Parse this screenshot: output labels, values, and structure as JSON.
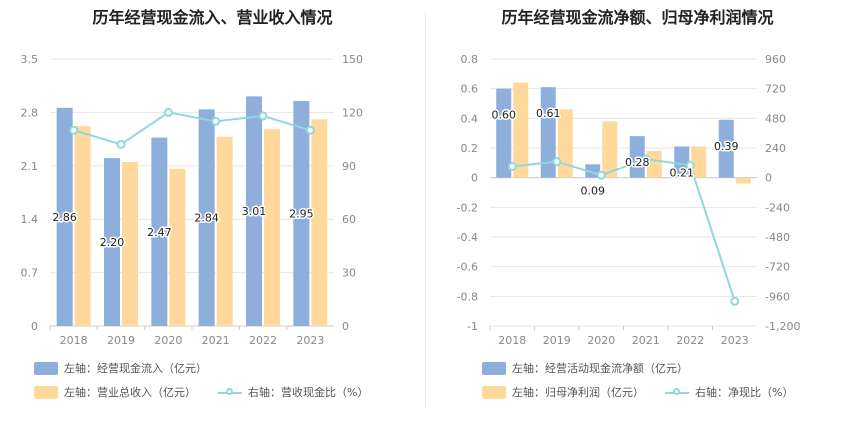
{
  "colors": {
    "blue": "#8eaedc",
    "orange": "#ffd99b",
    "line": "#8fd8dc",
    "grid": "#e6e6e6",
    "axis": "#cccccc"
  },
  "chart_data": [
    {
      "type": "bar",
      "title": "历年经营现金流入、营业收入情况",
      "categories": [
        "2018",
        "2019",
        "2020",
        "2021",
        "2022",
        "2023"
      ],
      "y_left": {
        "range": [
          0,
          3.5
        ],
        "ticks": [
          "0",
          "0.7",
          "1.4",
          "2.1",
          "2.8",
          "3.5"
        ]
      },
      "y_right": {
        "range": [
          0,
          150
        ],
        "ticks": [
          "0",
          "30",
          "60",
          "90",
          "120",
          "150"
        ]
      },
      "series": [
        {
          "name": "左轴：经营现金流入（亿元）",
          "type": "bar",
          "axis": "left",
          "values": [
            2.86,
            2.2,
            2.47,
            2.84,
            3.01,
            2.95
          ],
          "labels": [
            "2.86",
            "2.20",
            "2.47",
            "2.84",
            "3.01",
            "2.95"
          ]
        },
        {
          "name": "左轴：营业总收入（亿元）",
          "type": "bar",
          "axis": "left",
          "values": [
            2.62,
            2.15,
            2.06,
            2.48,
            2.58,
            2.71
          ]
        },
        {
          "name": "右轴：营收现金比（%）",
          "type": "line",
          "axis": "right",
          "values": [
            110,
            102,
            120,
            115,
            118,
            110
          ]
        }
      ],
      "legend": [
        "左轴：经营现金流入（亿元）",
        "左轴：营业总收入（亿元）",
        "右轴：营收现金比（%）"
      ]
    },
    {
      "type": "bar",
      "title": "历年经营现金流净额、归母净利润情况",
      "categories": [
        "2018",
        "2019",
        "2020",
        "2021",
        "2022",
        "2023"
      ],
      "y_left": {
        "range": [
          -1,
          0.8
        ],
        "ticks": [
          "-1",
          "-0.8",
          "-0.6",
          "-0.4",
          "-0.2",
          "0",
          "0.2",
          "0.4",
          "0.6",
          "0.8"
        ]
      },
      "y_right": {
        "range": [
          -1200,
          960
        ],
        "ticks": [
          "-1,200",
          "-960",
          "-720",
          "-480",
          "-240",
          "0",
          "240",
          "480",
          "720",
          "960"
        ]
      },
      "series": [
        {
          "name": "左轴：经营活动现金流净额（亿元）",
          "type": "bar",
          "axis": "left",
          "values": [
            0.6,
            0.61,
            0.09,
            0.28,
            0.21,
            0.39
          ],
          "labels": [
            "0.60",
            "0.61",
            "0.09",
            "0.28",
            "0.21",
            "0.39"
          ]
        },
        {
          "name": "左轴：归母净利润（亿元）",
          "type": "bar",
          "axis": "left",
          "values": [
            0.64,
            0.46,
            0.38,
            0.18,
            0.21,
            -0.04
          ]
        },
        {
          "name": "右轴：净现比（%）",
          "type": "line",
          "axis": "right",
          "values": [
            90,
            130,
            20,
            150,
            100,
            -1000
          ]
        }
      ],
      "legend": [
        "左轴：经营活动现金流净额（亿元）",
        "左轴：归母净利润（亿元）",
        "右轴：净现比（%）"
      ]
    }
  ]
}
